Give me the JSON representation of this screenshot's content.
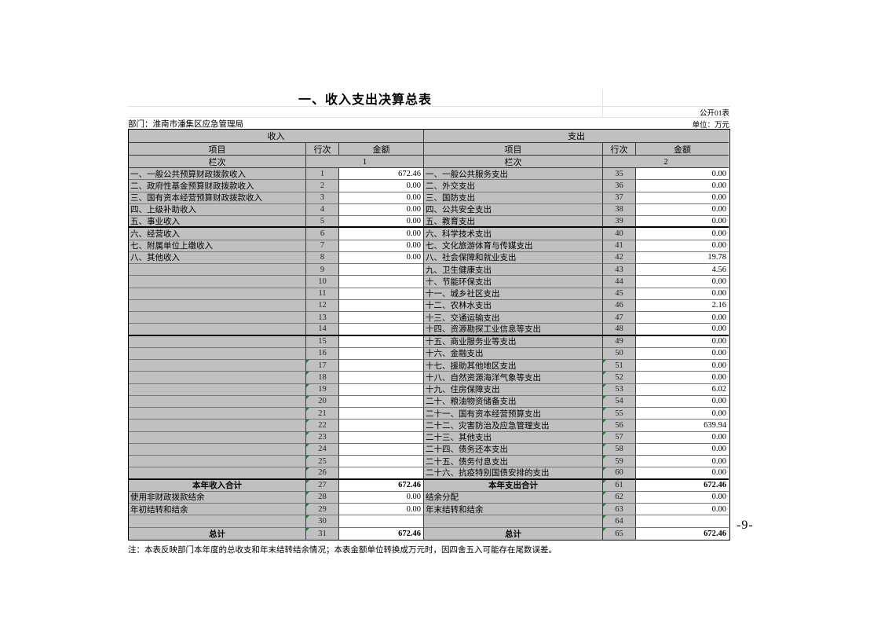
{
  "page": {
    "title": "一、收入支出决算总表",
    "form_code": "公开01表",
    "department_label": "部门：淮南市潘集区应急管理局",
    "unit_label": "单位：万元",
    "note": "注：本表反映部门本年度的总收支和年末结转结余情况；本表金额单位转换成万元时，因四舍五入可能存在尾数误差。",
    "page_number": "-9-"
  },
  "table": {
    "section_income": "收入",
    "section_expense": "支出",
    "headers": {
      "item": "项目",
      "line_no": "行次",
      "amount": "金额",
      "column_label": "栏次",
      "income_col_no": "1",
      "expense_col_no": "2"
    },
    "rows": [
      {
        "income_item": "一、一般公共预算财政拨款收入",
        "income_line": "1",
        "income_amount": "672.46",
        "expense_item": "一、一般公共服务支出",
        "expense_line": "35",
        "expense_amount": "0.00"
      },
      {
        "income_item": "二、政府性基金预算财政拨款收入",
        "income_line": "2",
        "income_amount": "0.00",
        "expense_item": "二、外交支出",
        "expense_line": "36",
        "expense_amount": "0.00"
      },
      {
        "income_item": "三、国有资本经营预算财政拨款收入",
        "income_line": "3",
        "income_amount": "0.00",
        "expense_item": "三、国防支出",
        "expense_line": "37",
        "expense_amount": "0.00"
      },
      {
        "income_item": "四、上级补助收入",
        "income_line": "4",
        "income_amount": "0.00",
        "expense_item": "四、公共安全支出",
        "expense_line": "38",
        "expense_amount": "0.00"
      },
      {
        "income_item": "五、事业收入",
        "income_line": "5",
        "income_amount": "0.00",
        "expense_item": "五、教育支出",
        "expense_line": "39",
        "expense_amount": "0.00",
        "thick_bottom": true
      },
      {
        "income_item": "六、经营收入",
        "income_line": "6",
        "income_amount": "0.00",
        "expense_item": "六、科学技术支出",
        "expense_line": "40",
        "expense_amount": "0.00"
      },
      {
        "income_item": "七、附属单位上缴收入",
        "income_line": "7",
        "income_amount": "0.00",
        "expense_item": "七、文化旅游体育与传媒支出",
        "expense_line": "41",
        "expense_amount": "0.00"
      },
      {
        "income_item": "八、其他收入",
        "income_line": "8",
        "income_amount": "0.00",
        "expense_item": "八、社会保障和就业支出",
        "expense_line": "42",
        "expense_amount": "19.78"
      },
      {
        "income_item": "",
        "income_line": "9",
        "income_amount": "",
        "expense_item": "九、卫生健康支出",
        "expense_line": "43",
        "expense_amount": "4.56"
      },
      {
        "income_item": "",
        "income_line": "10",
        "income_amount": "",
        "expense_item": "十、节能环保支出",
        "expense_line": "44",
        "expense_amount": "0.00"
      },
      {
        "income_item": "",
        "income_line": "11",
        "income_amount": "",
        "expense_item": "十一、城乡社区支出",
        "expense_line": "45",
        "expense_amount": "0.00"
      },
      {
        "income_item": "",
        "income_line": "12",
        "income_amount": "",
        "expense_item": "十二、农林水支出",
        "expense_line": "46",
        "expense_amount": "2.16"
      },
      {
        "income_item": "",
        "income_line": "13",
        "income_amount": "",
        "expense_item": "十三、交通运输支出",
        "expense_line": "47",
        "expense_amount": "0.00"
      },
      {
        "income_item": "",
        "income_line": "14",
        "income_amount": "",
        "expense_item": "十四、资源勘探工业信息等支出",
        "expense_line": "48",
        "expense_amount": "0.00",
        "thick_bottom": true
      },
      {
        "income_item": "",
        "income_line": "15",
        "income_amount": "",
        "expense_item": "十五、商业服务业等支出",
        "expense_line": "49",
        "expense_amount": "0.00"
      },
      {
        "income_item": "",
        "income_line": "16",
        "income_amount": "",
        "expense_item": "十六、金融支出",
        "expense_line": "50",
        "expense_amount": "0.00"
      },
      {
        "income_item": "",
        "income_line": "17",
        "income_amount": "",
        "expense_item": "十七、援助其他地区支出",
        "expense_line": "51",
        "expense_amount": "0.00",
        "green": true
      },
      {
        "income_item": "",
        "income_line": "18",
        "income_amount": "",
        "expense_item": "十八、自然资源海洋气象等支出",
        "expense_line": "52",
        "expense_amount": "0.00",
        "green": true
      },
      {
        "income_item": "",
        "income_line": "19",
        "income_amount": "",
        "expense_item": "十九、住房保障支出",
        "expense_line": "53",
        "expense_amount": "6.02",
        "green": true
      },
      {
        "income_item": "",
        "income_line": "20",
        "income_amount": "",
        "expense_item": "二十、粮油物资储备支出",
        "expense_line": "54",
        "expense_amount": "0.00",
        "green": true
      },
      {
        "income_item": "",
        "income_line": "21",
        "income_amount": "",
        "expense_item": "二十一、国有资本经营预算支出",
        "expense_line": "55",
        "expense_amount": "0.00",
        "green": true
      },
      {
        "income_item": "",
        "income_line": "22",
        "income_amount": "",
        "expense_item": "二十二、灾害防治及应急管理支出",
        "expense_line": "56",
        "expense_amount": "639.94",
        "green": true
      },
      {
        "income_item": "",
        "income_line": "23",
        "income_amount": "",
        "expense_item": "二十三、其他支出",
        "expense_line": "57",
        "expense_amount": "0.00",
        "green": true
      },
      {
        "income_item": "",
        "income_line": "24",
        "income_amount": "",
        "expense_item": "二十四、债务还本支出",
        "expense_line": "58",
        "expense_amount": "0.00",
        "green": true
      },
      {
        "income_item": "",
        "income_line": "25",
        "income_amount": "",
        "expense_item": "二十五、债务付息支出",
        "expense_line": "59",
        "expense_amount": "0.00",
        "green": true
      },
      {
        "income_item": "",
        "income_line": "26",
        "income_amount": "",
        "expense_item": "二十六、抗疫特别国债安排的支出",
        "expense_line": "60",
        "expense_amount": "0.00",
        "green": true,
        "thick_bottom": true
      },
      {
        "income_item": "本年收入合计",
        "income_line": "27",
        "income_amount": "672.46",
        "expense_item": "本年支出合计",
        "expense_line": "61",
        "expense_amount": "672.46",
        "green": true,
        "summary": true
      },
      {
        "income_item": "使用非财政拨款结余",
        "income_line": "28",
        "income_amount": "0.00",
        "expense_item": "结余分配",
        "expense_line": "62",
        "expense_amount": "0.00",
        "green": true
      },
      {
        "income_item": "年初结转和结余",
        "income_line": "29",
        "income_amount": "0.00",
        "expense_item": "年末结转和结余",
        "expense_line": "63",
        "expense_amount": "0.00",
        "green": true
      },
      {
        "income_item": "",
        "income_line": "30",
        "income_amount": "",
        "expense_item": "",
        "expense_line": "64",
        "expense_amount": "",
        "green": true
      },
      {
        "income_item": "总计",
        "income_line": "31",
        "income_amount": "672.46",
        "expense_item": "总计",
        "expense_line": "65",
        "expense_amount": "672.46",
        "green": true,
        "summary": true
      }
    ]
  },
  "colors": {
    "cell_fill": "#c0c0c0",
    "grid_border": "#3a3a3a",
    "warning_triangle": "#1e7e34"
  }
}
